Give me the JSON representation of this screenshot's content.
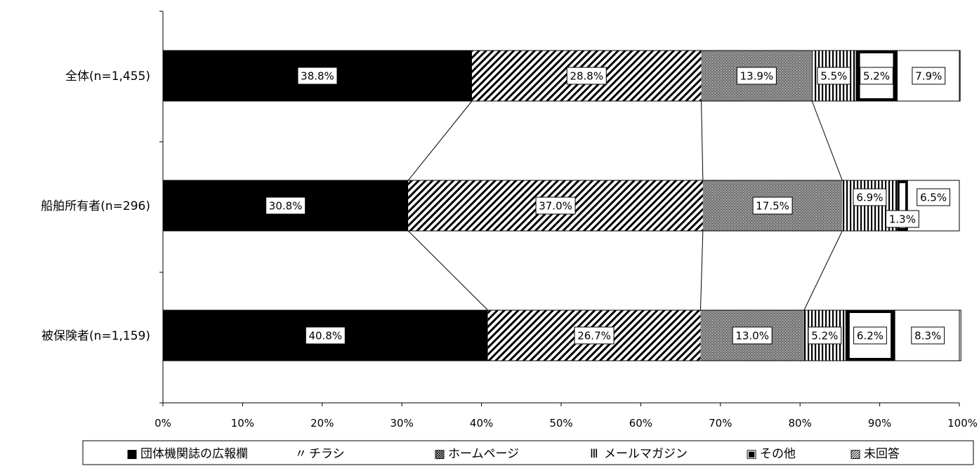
{
  "chart_data": {
    "type": "bar",
    "orientation": "horizontal",
    "stacked": "percent",
    "categories": [
      "全体(n=1,455)",
      "船舶所有者(n=296)",
      "被保険者(n=1,159)"
    ],
    "series": [
      {
        "name": "団体機関誌の広報欄",
        "values": [
          38.8,
          30.8,
          40.8
        ],
        "labels": [
          "38.8%",
          "30.8%",
          "40.8%"
        ],
        "pattern": "solid-black",
        "legend_icon": "■"
      },
      {
        "name": "チラシ",
        "values": [
          28.8,
          37.0,
          26.7
        ],
        "labels": [
          "28.8%",
          "37.0%",
          "26.7%"
        ],
        "pattern": "diagonal-hatch",
        "legend_icon": "〃"
      },
      {
        "name": "ホームページ",
        "values": [
          13.9,
          17.5,
          13.0
        ],
        "labels": [
          "13.9%",
          "17.5%",
          "13.0%"
        ],
        "pattern": "dense-grey",
        "legend_icon": "▩"
      },
      {
        "name": "メールマガジン",
        "values": [
          5.5,
          6.9,
          5.2
        ],
        "labels": [
          "5.5%",
          "6.9%",
          "5.2%"
        ],
        "pattern": "vertical-lines",
        "legend_icon": "Ⅲ"
      },
      {
        "name": "その他",
        "values": [
          5.2,
          1.3,
          6.2
        ],
        "labels": [
          "5.2%",
          "1.3%",
          "6.2%"
        ],
        "pattern": "black-frame",
        "legend_icon": "▣"
      },
      {
        "name": "未回答",
        "values": [
          7.9,
          6.5,
          8.3
        ],
        "labels": [
          "7.9%",
          "6.5%",
          "8.3%"
        ],
        "pattern": "white",
        "legend_icon": "▨"
      }
    ],
    "x_ticks": [
      "0%",
      "10%",
      "20%",
      "30%",
      "40%",
      "50%",
      "60%",
      "70%",
      "80%",
      "90%",
      "100%"
    ],
    "xlim": [
      0,
      100
    ],
    "series_connector_lines": true,
    "legend_position": "bottom",
    "grid": false,
    "colors": {
      "black": "#000000",
      "grey": "#8a8a8a",
      "white": "#ffffff"
    }
  }
}
